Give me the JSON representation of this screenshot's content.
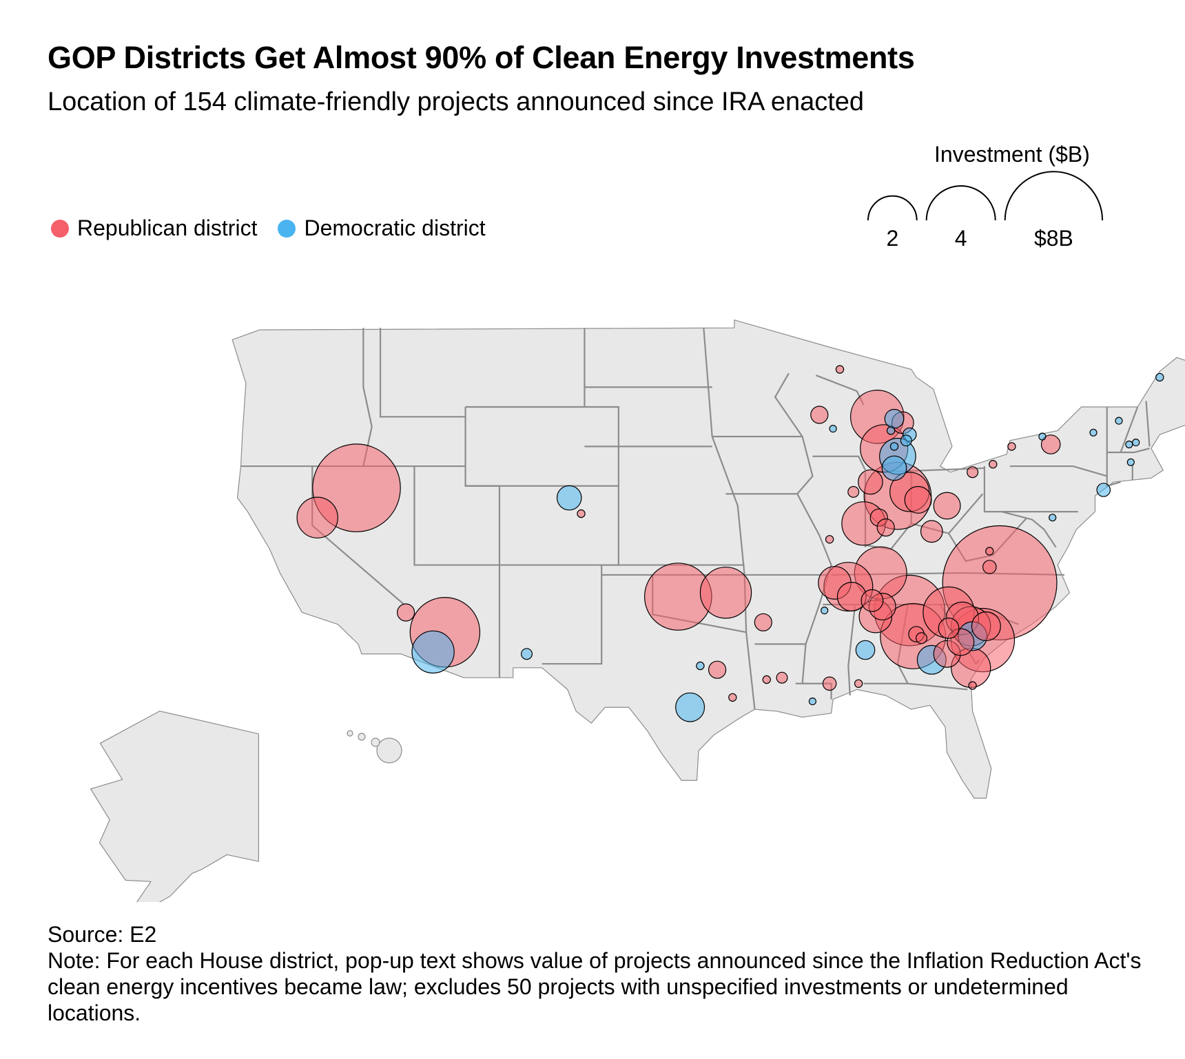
{
  "title": "GOP Districts Get Almost 90% of Clean Energy Investments",
  "subtitle": "Location of 154 climate-friendly projects announced since IRA enacted",
  "legend": {
    "republican": {
      "label": "Republican district",
      "color": "#f55f6a"
    },
    "democratic": {
      "label": "Democratic district",
      "color": "#49b4f0"
    }
  },
  "size_legend": {
    "title": "Investment ($B)",
    "items": [
      {
        "label": "2",
        "value": 2
      },
      {
        "label": "4",
        "value": 4
      },
      {
        "label": "$8B",
        "value": 8
      }
    ]
  },
  "source": "Source: E2",
  "note": "Note: For each House district, pop-up text shows value of projects announced since the Inflation Reduction Act's clean energy incentives became law; excludes 50 projects with unspecified investments or undetermined locations.",
  "chart_data": {
    "type": "bubble-map",
    "region": "United States congressional districts",
    "size_unit": "$B",
    "projects": [
      {
        "party": "R",
        "value": 6.5,
        "lon": -117.4,
        "lat": 40.9
      },
      {
        "party": "R",
        "value": 1.4,
        "lon": -119.7,
        "lat": 39.4
      },
      {
        "party": "D",
        "value": 0.5,
        "lon": -104.9,
        "lat": 40.4
      },
      {
        "party": "R",
        "value": 0.05,
        "lon": -104.2,
        "lat": 39.6
      },
      {
        "party": "R",
        "value": 0.25,
        "lon": -114.5,
        "lat": 34.6
      },
      {
        "party": "R",
        "value": 4.1,
        "lon": -112.2,
        "lat": 33.6
      },
      {
        "party": "D",
        "value": 1.5,
        "lon": -112.9,
        "lat": 32.6
      },
      {
        "party": "D",
        "value": 0.1,
        "lon": -107.4,
        "lat": 32.5
      },
      {
        "party": "R",
        "value": 3.8,
        "lon": -98.5,
        "lat": 35.4
      },
      {
        "party": "R",
        "value": 2.2,
        "lon": -95.7,
        "lat": 35.6
      },
      {
        "party": "R",
        "value": 0.25,
        "lon": -93.5,
        "lat": 34.1
      },
      {
        "party": "R",
        "value": 0.25,
        "lon": -96.2,
        "lat": 31.7
      },
      {
        "party": "D",
        "value": 0.05,
        "lon": -97.2,
        "lat": 31.9
      },
      {
        "party": "D",
        "value": 0.7,
        "lon": -97.8,
        "lat": 29.8
      },
      {
        "party": "R",
        "value": 0.05,
        "lon": -95.3,
        "lat": 30.3
      },
      {
        "party": "R",
        "value": 0.05,
        "lon": -93.3,
        "lat": 31.2
      },
      {
        "party": "R",
        "value": 0.1,
        "lon": -92.4,
        "lat": 31.3
      },
      {
        "party": "D",
        "value": 0.03,
        "lon": -90.6,
        "lat": 30.1
      },
      {
        "party": "R",
        "value": 0.15,
        "lon": -89.6,
        "lat": 31.0
      },
      {
        "party": "R",
        "value": 0.05,
        "lon": -87.9,
        "lat": 31.0
      },
      {
        "party": "D",
        "value": 0.3,
        "lon": -87.5,
        "lat": 32.7
      },
      {
        "party": "D",
        "value": 0.03,
        "lon": -89.9,
        "lat": 34.7
      },
      {
        "party": "R",
        "value": 0.25,
        "lon": -90.2,
        "lat": 44.6
      },
      {
        "party": "R",
        "value": 0.05,
        "lon": -89.0,
        "lat": 46.9
      },
      {
        "party": "D",
        "value": 0.03,
        "lon": -89.4,
        "lat": 43.9
      },
      {
        "party": "R",
        "value": 0.05,
        "lon": -89.6,
        "lat": 38.3
      },
      {
        "party": "R",
        "value": 2.0,
        "lon": -88.5,
        "lat": 35.9
      },
      {
        "party": "R",
        "value": 1.6,
        "lon": -87.6,
        "lat": 39.1
      },
      {
        "party": "R",
        "value": 0.9,
        "lon": -89.3,
        "lat": 36.1
      },
      {
        "party": "R",
        "value": 2.4,
        "lon": -86.8,
        "lat": 44.5
      },
      {
        "party": "R",
        "value": 1.9,
        "lon": -86.4,
        "lat": 42.9
      },
      {
        "party": "D",
        "value": 0.3,
        "lon": -85.8,
        "lat": 44.4
      },
      {
        "party": "R",
        "value": 0.4,
        "lon": -85.3,
        "lat": 44.2
      },
      {
        "party": "D",
        "value": 0.05,
        "lon": -86.0,
        "lat": 43.8
      },
      {
        "party": "D",
        "value": 0.15,
        "lon": -84.9,
        "lat": 43.6
      },
      {
        "party": "D",
        "value": 0.1,
        "lon": -85.1,
        "lat": 43.3
      },
      {
        "party": "D",
        "value": 0.05,
        "lon": -85.8,
        "lat": 43.0
      },
      {
        "party": "D",
        "value": 1.1,
        "lon": -85.6,
        "lat": 42.5
      },
      {
        "party": "D",
        "value": 0.5,
        "lon": -85.8,
        "lat": 41.9
      },
      {
        "party": "R",
        "value": 0.5,
        "lon": -87.2,
        "lat": 41.2
      },
      {
        "party": "R",
        "value": 0.1,
        "lon": -88.2,
        "lat": 40.7
      },
      {
        "party": "R",
        "value": 3.8,
        "lon": -85.6,
        "lat": 40.5
      },
      {
        "party": "R",
        "value": 1.3,
        "lon": -84.9,
        "lat": 40.7
      },
      {
        "party": "R",
        "value": 0.6,
        "lon": -84.4,
        "lat": 40.3
      },
      {
        "party": "R",
        "value": 0.25,
        "lon": -86.7,
        "lat": 39.4
      },
      {
        "party": "R",
        "value": 0.25,
        "lon": -86.3,
        "lat": 38.9
      },
      {
        "party": "R",
        "value": 0.6,
        "lon": -82.7,
        "lat": 40.0
      },
      {
        "party": "R",
        "value": 0.4,
        "lon": -83.6,
        "lat": 38.7
      },
      {
        "party": "R",
        "value": 0.1,
        "lon": -81.2,
        "lat": 41.7
      },
      {
        "party": "R",
        "value": 0.05,
        "lon": -80.0,
        "lat": 42.1
      },
      {
        "party": "R",
        "value": 0.05,
        "lon": -78.9,
        "lat": 43.0
      },
      {
        "party": "D",
        "value": 0.03,
        "lon": -77.1,
        "lat": 43.5
      },
      {
        "party": "R",
        "value": 0.3,
        "lon": -76.6,
        "lat": 43.1
      },
      {
        "party": "D",
        "value": 0.03,
        "lon": -74.1,
        "lat": 43.7
      },
      {
        "party": "D",
        "value": 0.03,
        "lon": -72.6,
        "lat": 44.3
      },
      {
        "party": "D",
        "value": 0.03,
        "lon": -72.0,
        "lat": 43.1
      },
      {
        "party": "D",
        "value": 0.03,
        "lon": -71.6,
        "lat": 43.2
      },
      {
        "party": "D",
        "value": 0.03,
        "lon": -71.9,
        "lat": 42.2
      },
      {
        "party": "D",
        "value": 0.15,
        "lon": -73.5,
        "lat": 40.8
      },
      {
        "party": "D",
        "value": 0.05,
        "lon": -70.2,
        "lat": 46.5
      },
      {
        "party": "D",
        "value": 0.03,
        "lon": -76.5,
        "lat": 39.4
      },
      {
        "party": "R",
        "value": 11.0,
        "lon": -79.6,
        "lat": 36.1
      },
      {
        "party": "R",
        "value": 0.05,
        "lon": -80.2,
        "lat": 37.7
      },
      {
        "party": "R",
        "value": 0.15,
        "lon": -80.2,
        "lat": 36.9
      },
      {
        "party": "R",
        "value": 2.3,
        "lon": -86.6,
        "lat": 36.6
      },
      {
        "party": "R",
        "value": 0.7,
        "lon": -88.3,
        "lat": 35.4
      },
      {
        "party": "R",
        "value": 0.4,
        "lon": -87.1,
        "lat": 35.2
      },
      {
        "party": "R",
        "value": 0.6,
        "lon": -86.5,
        "lat": 34.9
      },
      {
        "party": "R",
        "value": 0.9,
        "lon": -86.9,
        "lat": 34.4
      },
      {
        "party": "R",
        "value": 4.2,
        "lon": -84.9,
        "lat": 34.7
      },
      {
        "party": "R",
        "value": 3.6,
        "lon": -84.7,
        "lat": 33.4
      },
      {
        "party": "R",
        "value": 0.2,
        "lon": -84.5,
        "lat": 33.5
      },
      {
        "party": "R",
        "value": 0.1,
        "lon": -84.2,
        "lat": 33.3
      },
      {
        "party": "R",
        "value": 2.2,
        "lon": -82.6,
        "lat": 34.6
      },
      {
        "party": "R",
        "value": 0.9,
        "lon": -81.8,
        "lat": 34.3
      },
      {
        "party": "R",
        "value": 1.3,
        "lon": -81.3,
        "lat": 33.9
      },
      {
        "party": "R",
        "value": 3.4,
        "lon": -80.6,
        "lat": 33.2
      },
      {
        "party": "D",
        "value": 0.7,
        "lon": -81.2,
        "lat": 33.4
      },
      {
        "party": "R",
        "value": 0.7,
        "lon": -80.4,
        "lat": 33.9
      },
      {
        "party": "R",
        "value": 0.6,
        "lon": -82.7,
        "lat": 32.5
      },
      {
        "party": "R",
        "value": 0.35,
        "lon": -82.6,
        "lat": 33.8
      },
      {
        "party": "R",
        "value": 1.3,
        "lon": -81.3,
        "lat": 31.8
      },
      {
        "party": "R",
        "value": 0.6,
        "lon": -81.9,
        "lat": 33.1
      },
      {
        "party": "D",
        "value": 0.7,
        "lon": -83.6,
        "lat": 32.2
      },
      {
        "party": "R",
        "value": 0.05,
        "lon": -81.2,
        "lat": 30.9
      }
    ]
  }
}
